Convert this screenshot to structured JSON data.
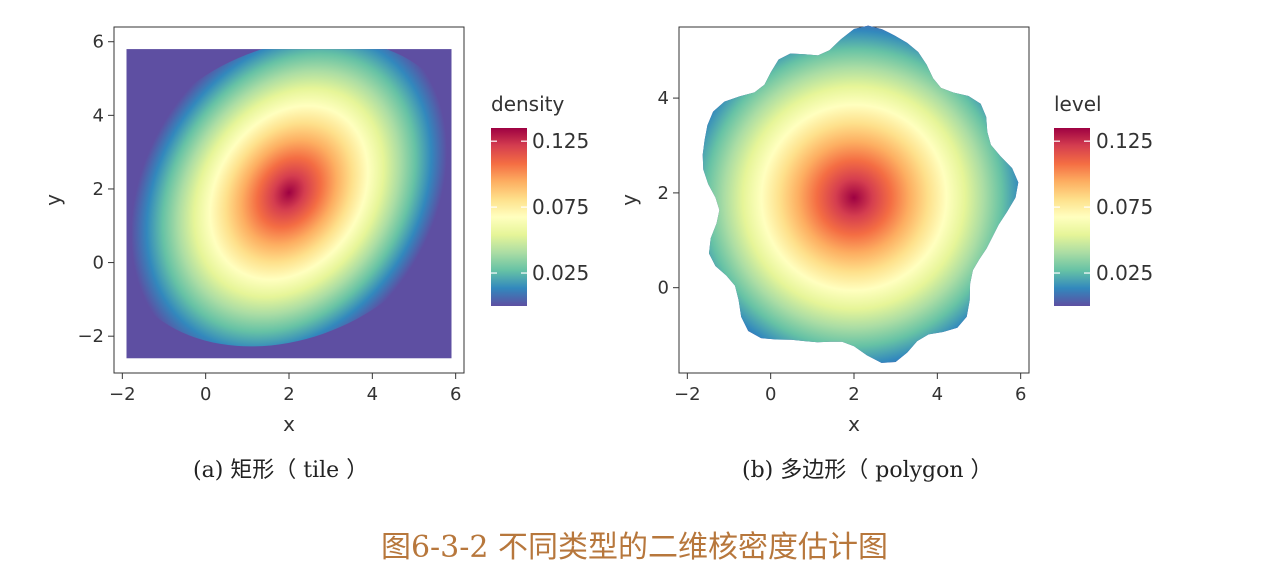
{
  "figure_title": "图6-3-2 不同类型的二维核密度估计图",
  "colors": {
    "background": "#5e4fa2",
    "ramp": [
      "#5e4fa2",
      "#3288bd",
      "#66c2a5",
      "#abdda4",
      "#e6f598",
      "#ffffbf",
      "#fee08b",
      "#fdae61",
      "#f46d43",
      "#d53e4f",
      "#9e0142"
    ],
    "caption": "#222222",
    "figure_title": "#b7773c"
  },
  "chart_data": [
    {
      "type": "heatmap",
      "style": "tile",
      "caption": "(a)  矩形（ tile ）",
      "xlabel": "x",
      "ylabel": "y",
      "xlim": [
        -2.2,
        6.2
      ],
      "ylim": [
        -3.0,
        6.4
      ],
      "xticks": [
        -2,
        0,
        2,
        4,
        6
      ],
      "yticks": [
        -2,
        0,
        2,
        4,
        6
      ],
      "data_extent": {
        "x": [
          -1.9,
          5.9
        ],
        "y": [
          -2.6,
          5.8
        ]
      },
      "density_peak": {
        "x": 2.0,
        "y": 1.9,
        "value": 0.135
      },
      "legend": {
        "title": "density",
        "ticks": [
          0.125,
          0.075,
          0.025
        ],
        "range": [
          0,
          0.135
        ],
        "placement": "right"
      },
      "grid": false
    },
    {
      "type": "heatmap",
      "style": "polygon",
      "caption": "(b)  多边形（ polygon ）",
      "xlabel": "x",
      "ylabel": "y",
      "xlim": [
        -2.2,
        6.2
      ],
      "ylim": [
        -1.8,
        5.5
      ],
      "xticks": [
        -2,
        0,
        2,
        4,
        6
      ],
      "yticks": [
        0,
        2,
        4
      ],
      "density_peak": {
        "x": 2.0,
        "y": 1.9,
        "value": 0.135
      },
      "legend": {
        "title": "level",
        "ticks": [
          0.125,
          0.075,
          0.025
        ],
        "range": [
          0,
          0.135
        ],
        "placement": "right"
      },
      "grid": false
    }
  ]
}
